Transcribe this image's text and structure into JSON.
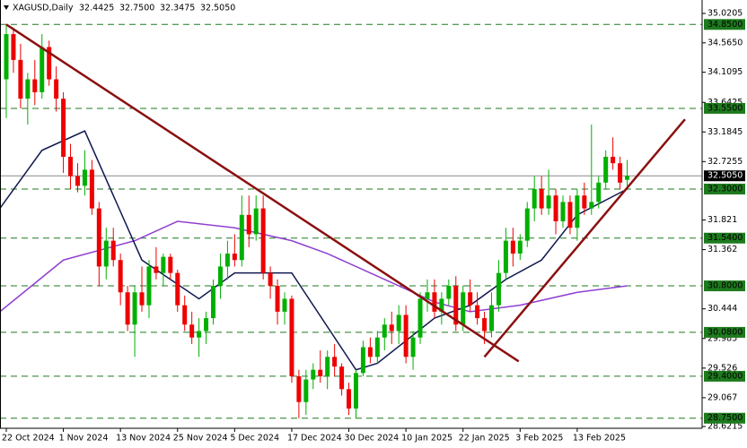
{
  "chart_data": {
    "type": "candlestick",
    "title": "XAGUSD,Daily",
    "ohlc_labels": [
      "32.4425",
      "32.7500",
      "32.3475",
      "32.5050"
    ],
    "up_color": "#00b000",
    "down_color": "#ee0000",
    "open": [
      34.0,
      34.7,
      34.3,
      33.7,
      34.0,
      33.8,
      34.5,
      34.0,
      33.7,
      32.8,
      32.5,
      32.35,
      32.6,
      32.0,
      31.1,
      31.5,
      31.2,
      30.7,
      30.2,
      30.7,
      30.5,
      31.1,
      31.0,
      31.25,
      31.0,
      30.5,
      30.2,
      30.0,
      30.1,
      30.3,
      30.8,
      31.1,
      31.3,
      31.2,
      31.9,
      31.6,
      32.0,
      31.0,
      30.8,
      30.4,
      30.6,
      29.4,
      29.0,
      29.35,
      29.5,
      29.4,
      29.7,
      29.55,
      29.2,
      28.9,
      29.45,
      29.85,
      29.7,
      30.0,
      30.2,
      30.1,
      30.35,
      29.7,
      30.0,
      30.6,
      30.7,
      30.4,
      30.6,
      30.8,
      30.2,
      30.7,
      30.5,
      30.3,
      30.1,
      30.5,
      31.0,
      31.5,
      31.3,
      31.5,
      32.0,
      32.3,
      32.0,
      32.2,
      31.8,
      32.1,
      31.7,
      32.2,
      32.0,
      32.1,
      32.4,
      32.8,
      32.7,
      32.4425
    ],
    "high": [
      34.85,
      34.8,
      34.55,
      34.1,
      34.3,
      34.7,
      34.6,
      34.2,
      33.8,
      33.0,
      32.7,
      32.9,
      32.75,
      32.1,
      31.7,
      31.7,
      31.3,
      30.8,
      30.8,
      31.1,
      31.2,
      31.4,
      31.3,
      31.3,
      31.05,
      30.65,
      30.4,
      30.3,
      30.4,
      30.9,
      31.3,
      31.5,
      31.6,
      32.2,
      32.2,
      32.2,
      32.2,
      31.1,
      30.9,
      30.7,
      30.65,
      29.5,
      29.5,
      29.6,
      29.8,
      29.8,
      29.9,
      29.6,
      29.3,
      29.5,
      29.95,
      30.0,
      30.1,
      30.3,
      30.4,
      30.5,
      30.5,
      30.1,
      30.7,
      30.9,
      30.9,
      30.7,
      30.9,
      30.95,
      30.8,
      30.9,
      30.7,
      30.4,
      30.7,
      31.2,
      31.7,
      31.7,
      31.6,
      32.1,
      32.5,
      32.5,
      32.6,
      32.3,
      32.2,
      32.2,
      32.3,
      32.4,
      33.3,
      32.5,
      32.9,
      33.1,
      32.8,
      32.75
    ],
    "low": [
      33.4,
      34.1,
      33.55,
      33.3,
      33.6,
      33.7,
      33.9,
      33.5,
      32.55,
      32.3,
      32.25,
      32.2,
      31.9,
      30.8,
      30.9,
      31.1,
      30.5,
      30.1,
      29.7,
      30.4,
      30.3,
      30.9,
      30.8,
      30.9,
      30.4,
      30.1,
      29.9,
      29.7,
      29.9,
      30.2,
      30.6,
      30.9,
      31.1,
      31.1,
      31.4,
      31.5,
      30.9,
      30.6,
      30.2,
      30.2,
      29.3,
      28.75,
      28.8,
      29.2,
      29.3,
      29.2,
      29.4,
      29.1,
      28.8,
      28.75,
      29.4,
      29.6,
      29.6,
      29.8,
      29.9,
      29.9,
      29.6,
      29.5,
      29.9,
      30.4,
      30.3,
      30.2,
      30.5,
      30.1,
      30.1,
      30.4,
      30.2,
      29.9,
      30.0,
      30.4,
      30.9,
      31.1,
      31.2,
      31.4,
      31.8,
      31.9,
      31.9,
      31.6,
      31.7,
      31.6,
      31.5,
      31.9,
      31.9,
      32.0,
      32.3,
      32.6,
      32.3,
      32.3475
    ],
    "close": [
      34.7,
      34.3,
      33.7,
      34.0,
      33.8,
      34.5,
      34.0,
      33.7,
      32.8,
      32.5,
      32.35,
      32.6,
      32.0,
      31.1,
      31.5,
      31.2,
      30.7,
      30.2,
      30.7,
      30.5,
      31.1,
      31.0,
      31.25,
      31.0,
      30.5,
      30.2,
      30.0,
      30.1,
      30.3,
      30.8,
      31.1,
      31.3,
      31.2,
      31.9,
      31.6,
      32.0,
      31.0,
      30.8,
      30.4,
      30.6,
      29.4,
      29.0,
      29.35,
      29.5,
      29.4,
      29.7,
      29.55,
      29.2,
      28.9,
      29.45,
      29.85,
      29.7,
      30.0,
      30.2,
      30.1,
      30.35,
      29.7,
      30.0,
      30.6,
      30.7,
      30.4,
      30.6,
      30.8,
      30.2,
      30.7,
      30.5,
      30.3,
      30.1,
      30.5,
      31.0,
      31.5,
      31.3,
      31.5,
      32.0,
      32.3,
      32.0,
      32.2,
      31.8,
      32.1,
      31.7,
      32.2,
      32.0,
      32.1,
      32.4,
      32.8,
      32.7,
      32.4,
      32.505
    ],
    "ma_fast": {
      "color": "#101850",
      "x": [
        -0.9,
        5,
        11,
        19,
        27,
        32,
        40,
        49,
        52,
        60,
        65,
        70,
        75,
        80,
        87
      ],
      "values": [
        32.0,
        32.9,
        33.2,
        31.2,
        30.6,
        31.0,
        31.0,
        29.5,
        29.6,
        30.3,
        30.5,
        30.9,
        31.2,
        31.9,
        32.3
      ]
    },
    "ma_slow": {
      "color": "#9040d0",
      "x": [
        -0.9,
        8,
        18,
        24,
        32,
        40,
        45,
        53,
        60,
        65,
        72,
        80,
        87
      ],
      "values": [
        30.4,
        31.2,
        31.5,
        31.8,
        31.7,
        31.5,
        31.3,
        30.9,
        30.55,
        30.4,
        30.5,
        30.7,
        30.8
      ]
    },
    "trendlines": [
      {
        "color": "#8b1010",
        "x": [
          0,
          71.8
        ],
        "values": [
          34.85,
          29.63
        ]
      },
      {
        "color": "#8b1010",
        "x": [
          67,
          95.1
        ],
        "values": [
          29.7,
          33.38
        ]
      }
    ],
    "levels": [
      {
        "value": 34.85,
        "label": "34.8500"
      },
      {
        "value": 33.55,
        "label": "33.5500"
      },
      {
        "value": 32.3,
        "label": "32.3000"
      },
      {
        "value": 31.54,
        "label": "31.5400"
      },
      {
        "value": 30.8,
        "label": "30.8000"
      },
      {
        "value": 30.08,
        "label": "30.0800"
      },
      {
        "value": 29.4,
        "label": "29.4000"
      },
      {
        "value": 28.75,
        "label": "28.7500"
      }
    ],
    "level_color": "#1e7a1e",
    "last_price": {
      "value": 32.505,
      "label": "32.5050"
    },
    "ylim": [
      28.6215,
      35.2287
    ],
    "xlim": [
      -0.88,
      97.5
    ],
    "yticks": [
      35.0205,
      {
        "value": 34.565,
        "label": "34.5650"
      },
      34.1095,
      33.6425,
      33.1845,
      32.7255,
      31.821,
      31.362,
      30.444,
      29.985,
      29.526,
      29.067,
      28.6215
    ],
    "xticks": [
      {
        "value": 0,
        "label": "22 Oct 2024"
      },
      {
        "value": 8,
        "label": "1 Nov 2024"
      },
      {
        "value": 16,
        "label": "13 Nov 2024"
      },
      {
        "value": 24,
        "label": "25 Nov 2024"
      },
      {
        "value": 32,
        "label": "5 Dec 2024"
      },
      {
        "value": 40,
        "label": "17 Dec 2024"
      },
      {
        "value": 48,
        "label": "30 Dec 2024"
      },
      {
        "value": 56,
        "label": "10 Jan 2025"
      },
      {
        "value": 64,
        "label": "22 Jan 2025"
      },
      {
        "value": 72,
        "label": "3 Feb 2025"
      },
      {
        "value": 80,
        "label": "13 Feb 2025"
      }
    ]
  }
}
